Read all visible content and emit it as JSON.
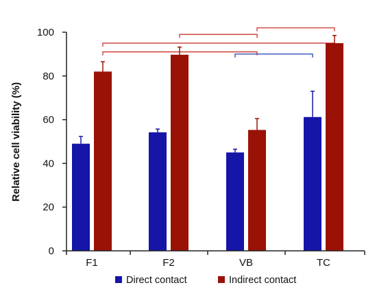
{
  "chart_data": {
    "type": "bar",
    "title": "",
    "xlabel": "",
    "ylabel": "Relative cell viability (%)",
    "ylim": [
      0,
      100
    ],
    "yticks": [
      0,
      20,
      40,
      60,
      80,
      100
    ],
    "categories": [
      "F1",
      "F2",
      "VB",
      "TC"
    ],
    "series": [
      {
        "name": "Direct contact",
        "color": "#1515a8",
        "values": [
          49,
          54.2,
          45,
          61.2
        ],
        "errors": [
          3.3,
          1.5,
          1.5,
          11.8
        ]
      },
      {
        "name": "Indirect contact",
        "color": "#9a1206",
        "values": [
          82,
          89.7,
          55.3,
          95
        ],
        "errors": [
          4.5,
          3.5,
          5.2,
          3.5
        ]
      }
    ],
    "significance_brackets": [
      {
        "from": {
          "category": "F2",
          "series": 1
        },
        "to": {
          "category": "VB",
          "series": 1
        },
        "level": 99,
        "color": "#c8352e"
      },
      {
        "from": {
          "category": "VB",
          "series": 1
        },
        "to": {
          "category": "TC",
          "series": 1
        },
        "level": 102,
        "color": "#c8352e"
      },
      {
        "from": {
          "category": "F1",
          "series": 1
        },
        "to": {
          "category": "TC",
          "series": 1
        },
        "level": 95,
        "color": "#c8352e"
      },
      {
        "from": {
          "category": "F1",
          "series": 1
        },
        "to": {
          "category": "VB",
          "series": 1
        },
        "level": 91,
        "color": "#c8352e"
      },
      {
        "from": {
          "category": "VB",
          "series": 0
        },
        "to": {
          "category": "TC",
          "series": 0
        },
        "level": 90,
        "color": "#1f3fae"
      }
    ],
    "legend_position": "bottom",
    "grid": false
  }
}
